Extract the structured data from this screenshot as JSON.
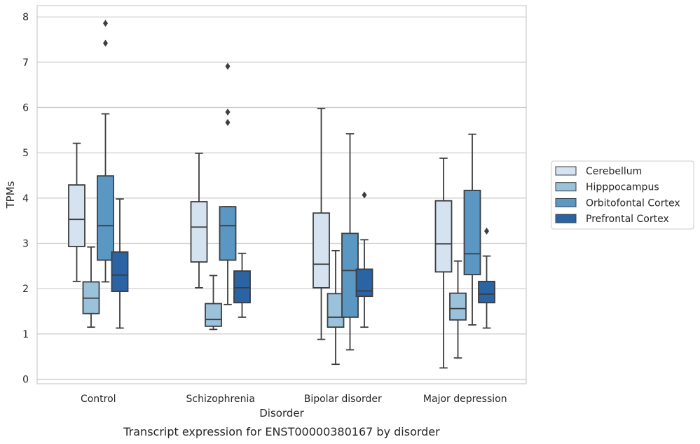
{
  "caption": "Transcript expression for ENST00000380167 by disorder",
  "chart_data": {
    "type": "box",
    "title": "",
    "xlabel": "Disorder",
    "ylabel": "TPMs",
    "ylim": [
      -0.1,
      8.25
    ],
    "yticks": [
      0,
      1,
      2,
      3,
      4,
      5,
      6,
      7,
      8
    ],
    "grid": "horizontal",
    "legend_position": "right",
    "categories": [
      "Control",
      "Schizophrenia",
      "Bipolar disorder",
      "Major depression"
    ],
    "series": [
      {
        "name": "Cerebellum",
        "color": "#d5e2f0",
        "boxes": [
          {
            "whisker_low": 2.16,
            "q1": 2.93,
            "median": 3.53,
            "q3": 4.29,
            "whisker_high": 5.21,
            "outliers": []
          },
          {
            "whisker_low": 2.02,
            "q1": 2.59,
            "median": 3.36,
            "q3": 3.92,
            "whisker_high": 4.99,
            "outliers": []
          },
          {
            "whisker_low": 0.88,
            "q1": 2.02,
            "median": 2.54,
            "q3": 3.67,
            "whisker_high": 5.98,
            "outliers": []
          },
          {
            "whisker_low": 0.25,
            "q1": 2.37,
            "median": 2.99,
            "q3": 3.94,
            "whisker_high": 4.88,
            "outliers": []
          }
        ]
      },
      {
        "name": "Hipppocampus",
        "color": "#9ac2db",
        "boxes": [
          {
            "whisker_low": 1.15,
            "q1": 1.45,
            "median": 1.79,
            "q3": 2.15,
            "whisker_high": 2.92,
            "outliers": []
          },
          {
            "whisker_low": 1.1,
            "q1": 1.17,
            "median": 1.32,
            "q3": 1.67,
            "whisker_high": 2.29,
            "outliers": []
          },
          {
            "whisker_low": 0.33,
            "q1": 1.15,
            "median": 1.37,
            "q3": 1.89,
            "whisker_high": 2.84,
            "outliers": []
          },
          {
            "whisker_low": 0.47,
            "q1": 1.31,
            "median": 1.56,
            "q3": 1.9,
            "whisker_high": 2.61,
            "outliers": []
          }
        ]
      },
      {
        "name": "Orbitofontal Cortex",
        "color": "#5b97c3",
        "boxes": [
          {
            "whisker_low": 2.15,
            "q1": 2.63,
            "median": 3.39,
            "q3": 4.49,
            "whisker_high": 5.86,
            "outliers": [
              7.42,
              7.86
            ]
          },
          {
            "whisker_low": 1.65,
            "q1": 2.63,
            "median": 3.39,
            "q3": 3.81,
            "whisker_high": 3.81,
            "outliers": [
              5.67,
              5.9,
              6.91
            ]
          },
          {
            "whisker_low": 0.65,
            "q1": 1.37,
            "median": 2.4,
            "q3": 3.22,
            "whisker_high": 5.42,
            "outliers": []
          },
          {
            "whisker_low": 1.2,
            "q1": 2.31,
            "median": 2.77,
            "q3": 4.17,
            "whisker_high": 5.41,
            "outliers": []
          }
        ]
      },
      {
        "name": "Prefrontal Cortex",
        "color": "#2a64a4",
        "boxes": [
          {
            "whisker_low": 1.13,
            "q1": 1.94,
            "median": 2.3,
            "q3": 2.81,
            "whisker_high": 3.98,
            "outliers": []
          },
          {
            "whisker_low": 1.37,
            "q1": 1.69,
            "median": 2.02,
            "q3": 2.39,
            "whisker_high": 2.78,
            "outliers": []
          },
          {
            "whisker_low": 1.15,
            "q1": 1.83,
            "median": 1.95,
            "q3": 2.43,
            "whisker_high": 3.08,
            "outliers": [
              4.07
            ]
          },
          {
            "whisker_low": 1.13,
            "q1": 1.69,
            "median": 1.88,
            "q3": 2.16,
            "whisker_high": 2.72,
            "outliers": [
              3.27
            ]
          }
        ]
      }
    ]
  }
}
